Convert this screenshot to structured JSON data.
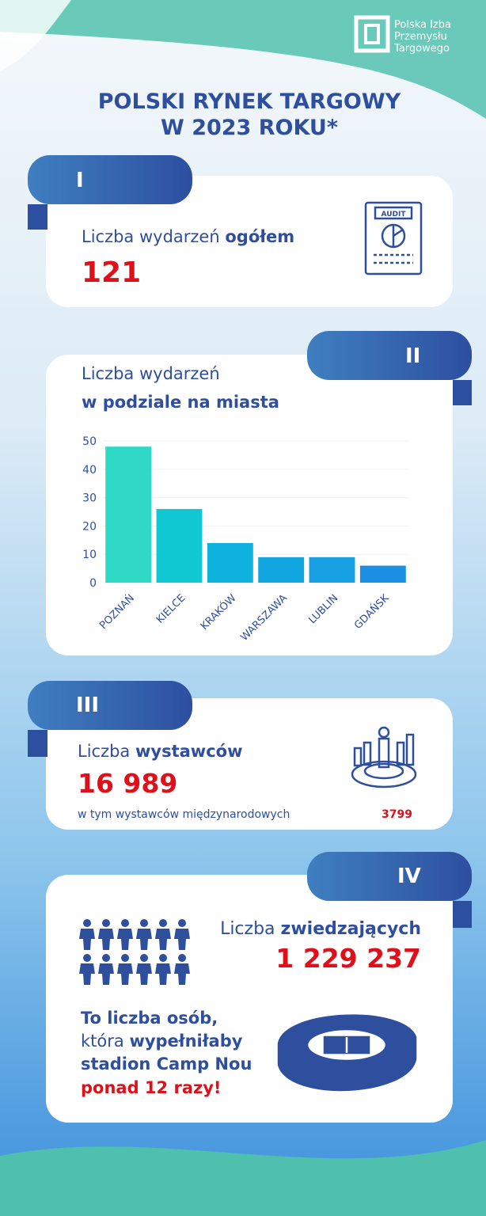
{
  "header": {
    "logo_lines": [
      "Polska Izba",
      "Przemysłu",
      "Targowego"
    ],
    "title_lines": [
      "POLSKI RYNEK TARGOWY",
      "W 2023 ROKU*"
    ]
  },
  "sections": [
    {
      "tab": "I",
      "label": "Liczba wydarzeń",
      "label_bold": "ogółem",
      "number": "121"
    },
    {
      "tab": "II"
    },
    {
      "tab": "III",
      "label": "Liczba",
      "label_bold": "wystawców",
      "number": "16 989",
      "note": "w tym wystawców międzynarodowych",
      "note_number": "3799"
    },
    {
      "tab": "IV",
      "label": "Liczba",
      "label_bold": "zwiedzających",
      "number": "1 229 237",
      "text_1": "To liczba osób,",
      "text_2": "która",
      "text_2_bold": "wypełniłaby",
      "text_3": "stadion Camp Nou",
      "text_4": "ponad 12 razy!"
    }
  ],
  "chart_data": {
    "type": "bar",
    "title_lines": [
      "Liczba wydarzeń",
      "w podziale na miasta"
    ],
    "categories": [
      "POZNAŃ",
      "KIELCE",
      "KRAKÓW",
      "WARSZAWA",
      "LUBLIN",
      "GDAŃSK"
    ],
    "values": [
      48,
      26,
      14,
      9,
      9,
      6
    ],
    "colors": [
      "#2fd9c6",
      "#10c8d2",
      "#0db3dc",
      "#12a6e0",
      "#16a0e3",
      "#1b8fe3"
    ],
    "ylim": [
      0,
      50
    ],
    "yticks": [
      0,
      10,
      20,
      30,
      40,
      50
    ],
    "grid": true
  }
}
